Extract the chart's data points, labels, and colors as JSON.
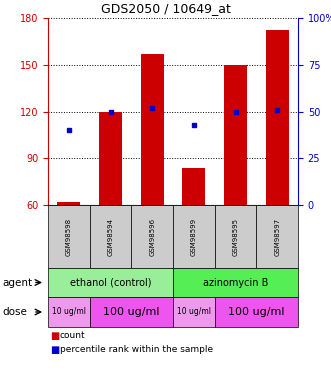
{
  "title": "GDS2050 / 10649_at",
  "samples": [
    "GSM98598",
    "GSM98594",
    "GSM98596",
    "GSM98599",
    "GSM98595",
    "GSM98597"
  ],
  "counts": [
    62,
    120,
    157,
    84,
    150,
    172
  ],
  "percentiles": [
    40,
    50,
    52,
    43,
    50,
    51
  ],
  "ylim_left": [
    60,
    180
  ],
  "ylim_right": [
    0,
    100
  ],
  "yticks_left": [
    60,
    90,
    120,
    150,
    180
  ],
  "yticks_right": [
    0,
    25,
    50,
    75,
    100
  ],
  "bar_color": "#cc0000",
  "dot_color": "#0000cc",
  "bar_bottom": 60,
  "agent_groups": [
    {
      "label": "ethanol (control)",
      "start": 0,
      "end": 3,
      "color": "#99ee99"
    },
    {
      "label": "azinomycin B",
      "start": 3,
      "end": 6,
      "color": "#55ee55"
    }
  ],
  "dose_groups": [
    {
      "label": "10 ug/ml",
      "start": 0,
      "end": 1,
      "color": "#ee99ee",
      "fontsize": 5.5
    },
    {
      "label": "100 ug/ml",
      "start": 1,
      "end": 3,
      "color": "#ee55ee",
      "fontsize": 8
    },
    {
      "label": "10 ug/ml",
      "start": 3,
      "end": 4,
      "color": "#ee99ee",
      "fontsize": 5.5
    },
    {
      "label": "100 ug/ml",
      "start": 4,
      "end": 6,
      "color": "#ee55ee",
      "fontsize": 8
    }
  ],
  "left_axis_color": "#cc0000",
  "right_axis_color": "#0000cc",
  "sample_box_color": "#cccccc"
}
